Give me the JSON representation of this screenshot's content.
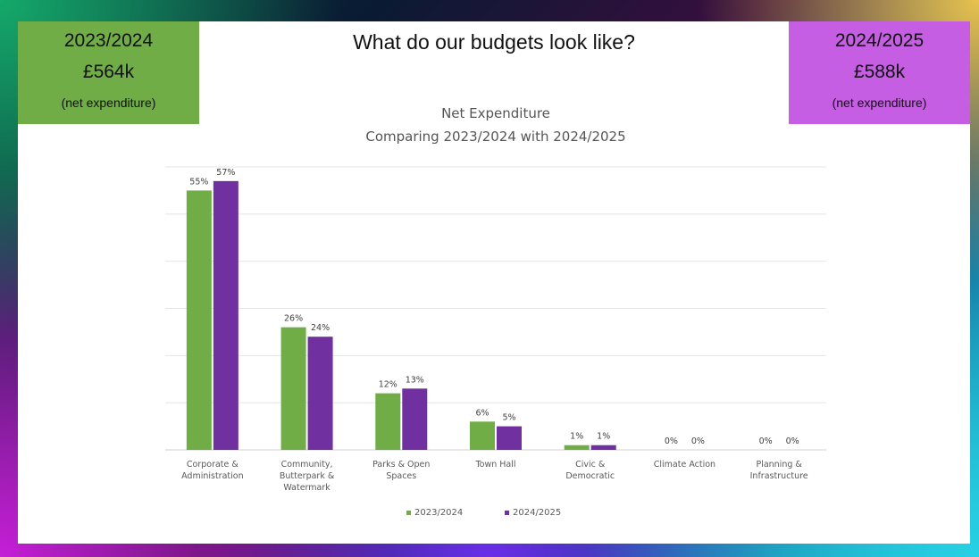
{
  "slide": {
    "title": "What do our budgets look like?",
    "left_box": {
      "year": "2023/2024",
      "amount": "£564k",
      "note": "(net expenditure)"
    },
    "right_box": {
      "year": "2024/2025",
      "amount": "£588k",
      "note": "(net expenditure)"
    }
  },
  "chart_data": {
    "type": "bar",
    "title": "Net Expenditure",
    "subtitle": "Comparing 2023/2024 with 2024/2025",
    "categories": [
      [
        "Corporate &",
        "Administration"
      ],
      [
        "Community,",
        "Butterpark &",
        "Watermark"
      ],
      [
        "Parks & Open",
        "Spaces"
      ],
      [
        "Town Hall"
      ],
      [
        "Civic &",
        "Democratic"
      ],
      [
        "Climate Action"
      ],
      [
        "Planning &",
        "Infrastructure"
      ]
    ],
    "series": [
      {
        "name": "2023/2024",
        "color": "#70ad47",
        "values": [
          55,
          26,
          12,
          6,
          1,
          0,
          0
        ],
        "labels": [
          "55%",
          "26%",
          "12%",
          "6%",
          "1%",
          "0%",
          "0%"
        ]
      },
      {
        "name": "2024/2025",
        "color": "#7030a0",
        "values": [
          57,
          24,
          13,
          5,
          1,
          0,
          0
        ],
        "labels": [
          "57%",
          "24%",
          "13%",
          "5%",
          "1%",
          "0%",
          "0%"
        ]
      }
    ],
    "ylim": [
      0,
      60
    ],
    "grid": true,
    "legend": "bottom"
  }
}
